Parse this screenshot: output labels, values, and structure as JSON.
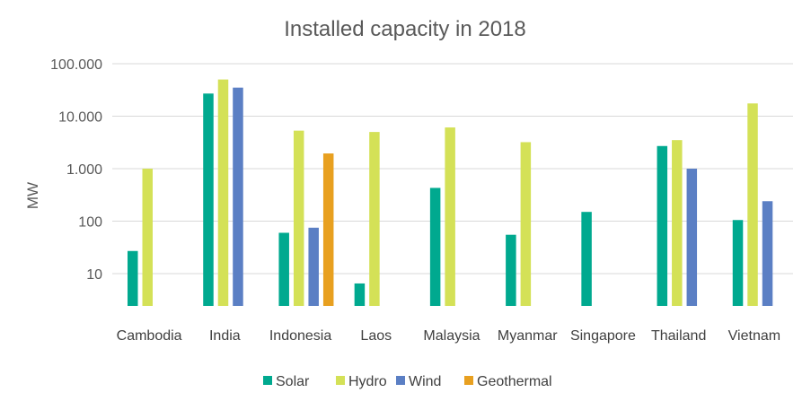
{
  "chart_data": {
    "type": "bar",
    "title": "Installed capacity in 2018",
    "xlabel": "",
    "ylabel": "MW",
    "yscale": "log",
    "ylim": [
      2.3,
      100000
    ],
    "yticks": [
      10,
      100,
      1000,
      10000,
      100000
    ],
    "ytick_labels": [
      "10",
      "100",
      "1.000",
      "10.000",
      "100.000"
    ],
    "grid": true,
    "legend_position": "bottom",
    "categories": [
      "Cambodia",
      "India",
      "Indonesia",
      "Laos",
      "Malaysia",
      "Myanmar",
      "Singapore",
      "Thailand",
      "Vietnam"
    ],
    "series": [
      {
        "name": "Solar",
        "color": "#00a98f",
        "values": [
          27,
          27000,
          60,
          6.5,
          430,
          55,
          150,
          2700,
          105
        ]
      },
      {
        "name": "Hydro",
        "color": "#d4e157",
        "values": [
          1000,
          50000,
          5300,
          5000,
          6100,
          3200,
          null,
          3500,
          17500
        ]
      },
      {
        "name": "Wind",
        "color": "#5b7fc4",
        "values": [
          null,
          35000,
          75,
          null,
          null,
          null,
          null,
          1000,
          240
        ]
      },
      {
        "name": "Geothermal",
        "color": "#e8a020",
        "values": [
          null,
          null,
          1950,
          null,
          null,
          null,
          null,
          null,
          null
        ]
      }
    ]
  }
}
